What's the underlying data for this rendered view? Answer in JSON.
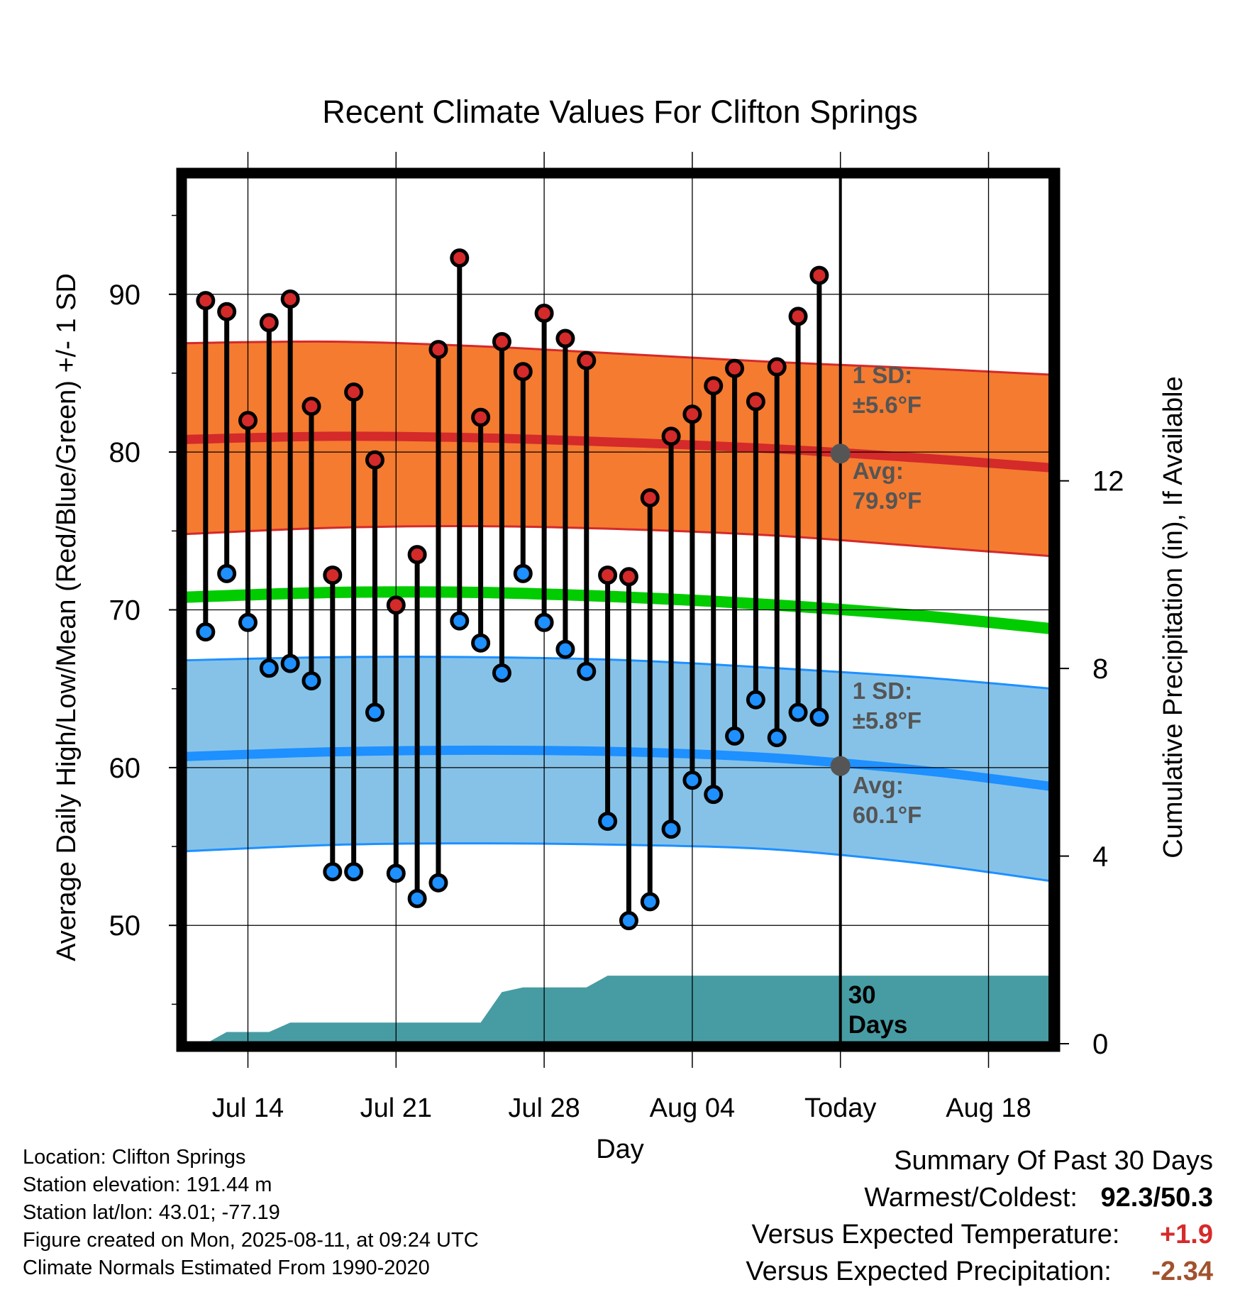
{
  "chart_data": {
    "type": "line",
    "title": "Recent Climate Values For Clifton Springs",
    "xlabel": "Day",
    "ylabel": "Average Daily High/Low/Mean (Red/Blue/Green) +/- 1 SD",
    "y2label": "Cumulative Precipitation (in), If Available",
    "x_range": [
      "Jul 11",
      "Aug 21"
    ],
    "ylim": [
      42.5,
      97.5
    ],
    "y2lim": [
      0,
      18.5
    ],
    "yticks": [
      50,
      60,
      70,
      80,
      90
    ],
    "y2ticks": [
      0,
      4,
      8,
      12
    ],
    "xticks": [
      {
        "date": "Jul 14",
        "label": "Jul 14"
      },
      {
        "date": "Jul 21",
        "label": "Jul 21"
      },
      {
        "date": "Jul 28",
        "label": "Jul 28"
      },
      {
        "date": "Aug 04",
        "label": "Aug 04"
      },
      {
        "date": "Aug 11",
        "label": "Today"
      },
      {
        "date": "Aug 18",
        "label": "Aug 18"
      }
    ],
    "grid": true,
    "today": "Aug 11",
    "observed": {
      "dates": [
        "Jul 12",
        "Jul 13",
        "Jul 14",
        "Jul 15",
        "Jul 16",
        "Jul 17",
        "Jul 18",
        "Jul 19",
        "Jul 20",
        "Jul 21",
        "Jul 22",
        "Jul 23",
        "Jul 24",
        "Jul 25",
        "Jul 26",
        "Jul 27",
        "Jul 28",
        "Jul 29",
        "Jul 30",
        "Jul 31",
        "Aug 01",
        "Aug 02",
        "Aug 03",
        "Aug 04",
        "Aug 05",
        "Aug 06",
        "Aug 07",
        "Aug 08",
        "Aug 09",
        "Aug 10"
      ],
      "high": [
        89.6,
        88.9,
        82.0,
        88.2,
        89.7,
        82.9,
        72.2,
        83.8,
        79.5,
        70.3,
        73.5,
        86.5,
        92.3,
        82.2,
        87.0,
        85.1,
        88.8,
        87.2,
        85.8,
        72.2,
        72.1,
        77.1,
        81.0,
        82.4,
        84.2,
        85.3,
        83.2,
        85.4,
        88.6,
        91.2
      ],
      "low": [
        68.6,
        72.3,
        69.2,
        66.3,
        66.6,
        65.5,
        53.4,
        53.4,
        63.5,
        53.3,
        51.7,
        52.7,
        69.3,
        67.9,
        66.0,
        72.3,
        69.2,
        67.5,
        66.1,
        56.6,
        50.3,
        51.5,
        56.1,
        59.2,
        58.3,
        62.0,
        64.3,
        61.9,
        63.5,
        63.2
      ]
    },
    "normals": {
      "dates": [
        "Jul 11",
        "Jul 18",
        "Jul 25",
        "Aug 01",
        "Aug 08",
        "Aug 15",
        "Aug 21"
      ],
      "high_avg": [
        80.8,
        81.0,
        80.9,
        80.6,
        80.2,
        79.6,
        79.0
      ],
      "high_sd_band_upper": [
        86.9,
        87.0,
        86.7,
        86.2,
        85.7,
        85.3,
        84.9
      ],
      "high_sd_band_lower": [
        74.8,
        75.2,
        75.3,
        75.1,
        74.7,
        74.0,
        73.4
      ],
      "low_avg": [
        60.7,
        61.0,
        61.1,
        61.0,
        60.6,
        59.8,
        58.8
      ],
      "low_sd_band_upper": [
        66.8,
        67.0,
        67.0,
        66.8,
        66.3,
        65.7,
        65.0
      ],
      "low_sd_band_lower": [
        54.7,
        55.1,
        55.2,
        55.1,
        54.8,
        53.9,
        52.8
      ],
      "mean": [
        70.8,
        71.1,
        71.1,
        70.8,
        70.3,
        69.6,
        68.8
      ]
    },
    "precipitation_cumulative": {
      "dates": [
        "Jul 12",
        "Jul 13",
        "Jul 14",
        "Jul 15",
        "Jul 16",
        "Jul 17",
        "Jul 18",
        "Jul 19",
        "Jul 20",
        "Jul 21",
        "Jul 22",
        "Jul 23",
        "Jul 24",
        "Jul 25",
        "Jul 26",
        "Jul 27",
        "Jul 28",
        "Jul 29",
        "Jul 30",
        "Jul 31",
        "Aug 01",
        "Aug 02",
        "Aug 03",
        "Aug 04",
        "Aug 05",
        "Aug 06",
        "Aug 07",
        "Aug 08",
        "Aug 09",
        "Aug 10",
        "Aug 11",
        "Aug 21"
      ],
      "values": [
        0.0,
        0.25,
        0.25,
        0.25,
        0.45,
        0.45,
        0.45,
        0.45,
        0.45,
        0.45,
        0.45,
        0.45,
        0.45,
        0.45,
        1.1,
        1.2,
        1.2,
        1.2,
        1.2,
        1.45,
        1.45,
        1.45,
        1.45,
        1.45,
        1.45,
        1.45,
        1.45,
        1.45,
        1.45,
        1.45,
        1.45,
        1.45
      ]
    },
    "annotations": {
      "high_sd_label": "1 SD:",
      "high_sd_value": "±5.6°F",
      "high_avg_label": "Avg:",
      "high_avg_value": "79.9°F",
      "low_sd_label": "1 SD:",
      "low_sd_value": "±5.8°F",
      "low_avg_label": "Avg:",
      "low_avg_value": "60.1°F",
      "days_label_1": "30",
      "days_label_2": "Days"
    },
    "colors": {
      "high_band": "#f47b30",
      "high_line": "#d42a2a",
      "low_band": "#86c2e8",
      "low_line": "#1e90ff",
      "mean_line": "#00cc00",
      "precip": "#479ca3",
      "high_marker": "#d42a2a",
      "low_marker": "#1e90ff",
      "annotation": "#555555"
    }
  },
  "footer": {
    "location": "Location: Clifton Springs",
    "elevation": "Station elevation: 191.44 m",
    "latlon": "Station lat/lon: 43.01; -77.19",
    "created": "Figure created on Mon, 2025-08-11, at 09:24 UTC",
    "normals": "Climate Normals Estimated From 1990-2020"
  },
  "summary": {
    "title": "Summary Of Past 30 Days",
    "warmest_label": "Warmest/Coldest:",
    "warmest_value": "92.3/50.3",
    "temp_label": "Versus Expected Temperature:",
    "temp_value": "+1.9",
    "precip_label": "Versus Expected Precipitation:",
    "precip_value": "-2.34"
  }
}
